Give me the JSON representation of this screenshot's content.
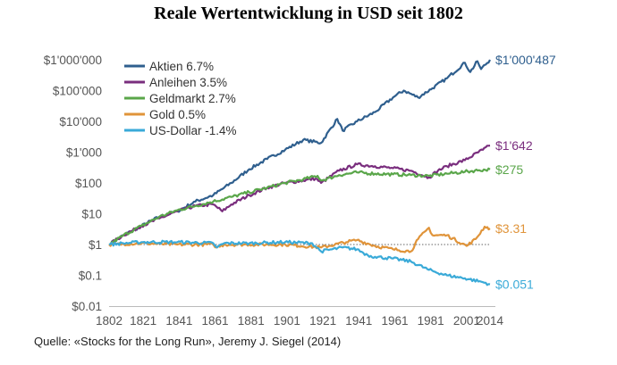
{
  "chart_data": {
    "type": "line",
    "title": "Reale Wertentwicklung in USD seit 1802",
    "source": "Quelle: «Stocks for the Long Run», Jeremy J. Siegel (2014)",
    "xlim": [
      1802,
      2014
    ],
    "x_ticks": [
      1802,
      1821,
      1841,
      1861,
      1881,
      1901,
      1921,
      1941,
      1961,
      1981,
      2001,
      2014
    ],
    "y_scale": "log",
    "ylim": [
      0.01,
      1000000
    ],
    "y_ticks": [
      {
        "value": 0.01,
        "label": "$0.01"
      },
      {
        "value": 0.1,
        "label": "$0.1"
      },
      {
        "value": 1,
        "label": "$1"
      },
      {
        "value": 10,
        "label": "$10"
      },
      {
        "value": 100,
        "label": "$100"
      },
      {
        "value": 1000,
        "label": "$1'000"
      },
      {
        "value": 10000,
        "label": "$10'000"
      },
      {
        "value": 100000,
        "label": "$100'000"
      },
      {
        "value": 1000000,
        "label": "$1'000'000"
      }
    ],
    "reference_line": {
      "y": 1,
      "style": "dotted"
    },
    "legend_position": "top-left",
    "series": [
      {
        "name": "Aktien 6.7%",
        "color": "#2f5f8e",
        "end_label": "$1'000'487",
        "points": [
          [
            1802,
            1
          ],
          [
            1810,
            2
          ],
          [
            1820,
            4
          ],
          [
            1830,
            8
          ],
          [
            1840,
            12
          ],
          [
            1850,
            25
          ],
          [
            1860,
            40
          ],
          [
            1870,
            100
          ],
          [
            1880,
            280
          ],
          [
            1890,
            600
          ],
          [
            1900,
            1200
          ],
          [
            1910,
            2500
          ],
          [
            1920,
            2000
          ],
          [
            1929,
            12000
          ],
          [
            1932,
            5000
          ],
          [
            1940,
            10000
          ],
          [
            1950,
            20000
          ],
          [
            1960,
            60000
          ],
          [
            1966,
            100000
          ],
          [
            1974,
            60000
          ],
          [
            1982,
            120000
          ],
          [
            1990,
            250000
          ],
          [
            2000,
            800000
          ],
          [
            2003,
            400000
          ],
          [
            2007,
            900000
          ],
          [
            2009,
            500000
          ],
          [
            2014,
            1000487
          ]
        ]
      },
      {
        "name": "Anleihen 3.5%",
        "color": "#7a2e7e",
        "end_label": "$1'642",
        "points": [
          [
            1802,
            1
          ],
          [
            1810,
            2
          ],
          [
            1820,
            4
          ],
          [
            1830,
            7
          ],
          [
            1840,
            12
          ],
          [
            1850,
            18
          ],
          [
            1860,
            20
          ],
          [
            1865,
            12
          ],
          [
            1870,
            20
          ],
          [
            1880,
            40
          ],
          [
            1890,
            70
          ],
          [
            1900,
            100
          ],
          [
            1910,
            120
          ],
          [
            1917,
            140
          ],
          [
            1920,
            100
          ],
          [
            1930,
            250
          ],
          [
            1940,
            400
          ],
          [
            1950,
            350
          ],
          [
            1960,
            300
          ],
          [
            1970,
            250
          ],
          [
            1980,
            150
          ],
          [
            1985,
            250
          ],
          [
            1990,
            350
          ],
          [
            2000,
            550
          ],
          [
            2010,
            1200
          ],
          [
            2014,
            1642
          ]
        ]
      },
      {
        "name": "Geldmarkt 2.7%",
        "color": "#5aa64a",
        "end_label": "$275",
        "points": [
          [
            1802,
            1
          ],
          [
            1810,
            2
          ],
          [
            1820,
            4
          ],
          [
            1830,
            8
          ],
          [
            1840,
            13
          ],
          [
            1850,
            18
          ],
          [
            1860,
            25
          ],
          [
            1870,
            35
          ],
          [
            1880,
            50
          ],
          [
            1890,
            70
          ],
          [
            1900,
            100
          ],
          [
            1910,
            130
          ],
          [
            1918,
            170
          ],
          [
            1920,
            120
          ],
          [
            1930,
            180
          ],
          [
            1940,
            220
          ],
          [
            1950,
            200
          ],
          [
            1960,
            190
          ],
          [
            1970,
            180
          ],
          [
            1980,
            170
          ],
          [
            1990,
            200
          ],
          [
            2000,
            230
          ],
          [
            2008,
            260
          ],
          [
            2014,
            275
          ]
        ]
      },
      {
        "name": "Gold 0.5%",
        "color": "#e0943a",
        "end_label": "$3.31",
        "points": [
          [
            1802,
            1
          ],
          [
            1820,
            1.1
          ],
          [
            1840,
            1
          ],
          [
            1860,
            1
          ],
          [
            1862,
            0.8
          ],
          [
            1866,
            1
          ],
          [
            1880,
            1
          ],
          [
            1900,
            1
          ],
          [
            1920,
            0.8
          ],
          [
            1934,
            1.2
          ],
          [
            1940,
            1.4
          ],
          [
            1950,
            0.9
          ],
          [
            1960,
            0.7
          ],
          [
            1970,
            0.6
          ],
          [
            1974,
            1.5
          ],
          [
            1980,
            3.5
          ],
          [
            1982,
            2
          ],
          [
            1990,
            2
          ],
          [
            2001,
            0.9
          ],
          [
            2006,
            1.5
          ],
          [
            2011,
            3.8
          ],
          [
            2014,
            3.31
          ]
        ]
      },
      {
        "name": "US-Dollar -1.4%",
        "color": "#3aaad8",
        "end_label": "$0.051",
        "points": [
          [
            1802,
            1
          ],
          [
            1810,
            1.1
          ],
          [
            1820,
            1.2
          ],
          [
            1840,
            1.2
          ],
          [
            1860,
            1.1
          ],
          [
            1862,
            0.8
          ],
          [
            1866,
            1.1
          ],
          [
            1880,
            1.1
          ],
          [
            1900,
            1.2
          ],
          [
            1915,
            1.1
          ],
          [
            1920,
            0.6
          ],
          [
            1932,
            0.8
          ],
          [
            1940,
            0.7
          ],
          [
            1946,
            0.45
          ],
          [
            1950,
            0.4
          ],
          [
            1960,
            0.35
          ],
          [
            1970,
            0.28
          ],
          [
            1980,
            0.15
          ],
          [
            1990,
            0.1
          ],
          [
            2000,
            0.08
          ],
          [
            2010,
            0.06
          ],
          [
            2014,
            0.051
          ]
        ]
      }
    ]
  }
}
